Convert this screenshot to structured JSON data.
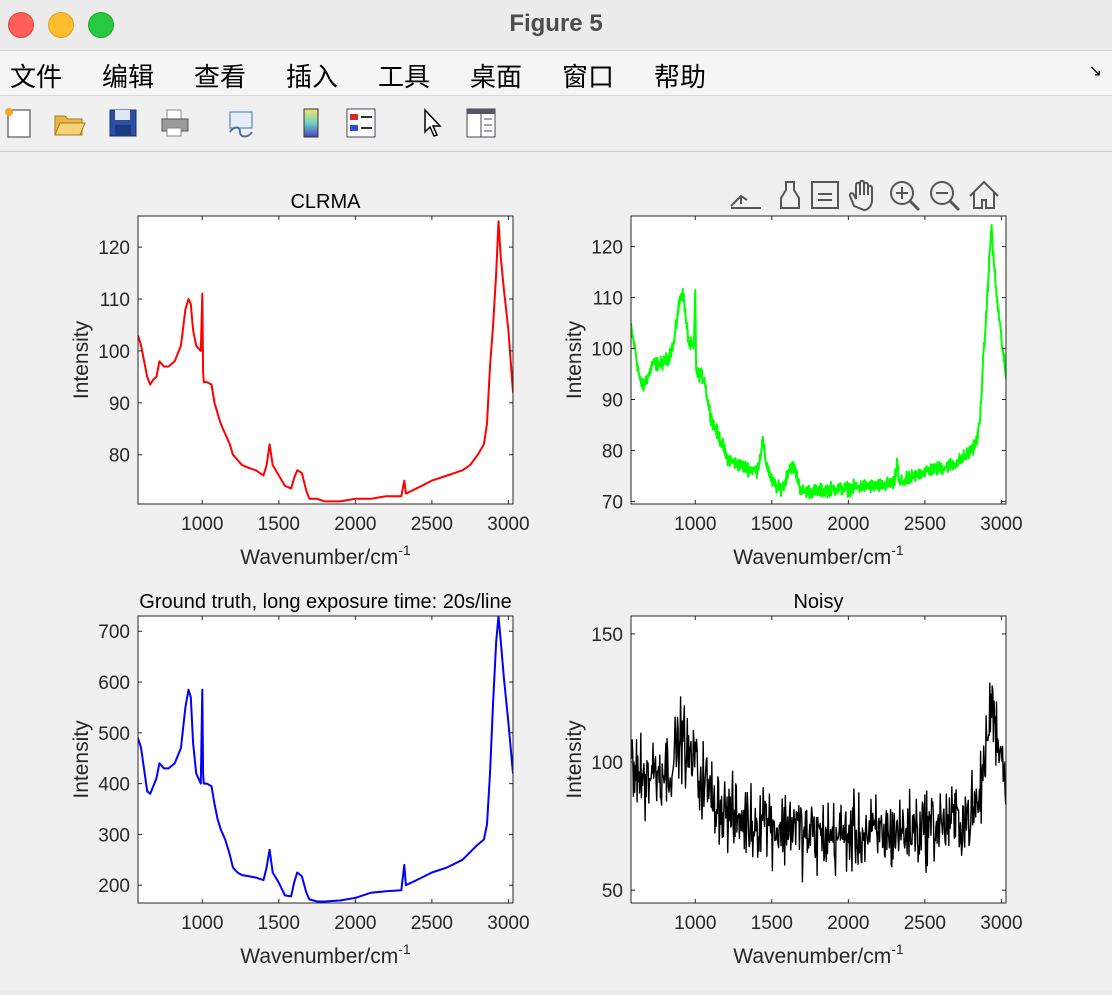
{
  "window": {
    "title": "Figure 5"
  },
  "menu": [
    "文件",
    "编辑",
    "查看",
    "插入",
    "工具",
    "桌面",
    "窗口",
    "帮助"
  ],
  "menu_overflow_icon": "arrow-expand-icon",
  "toolbar_icons": [
    "new-file-icon",
    "open-folder-icon",
    "save-icon",
    "print-icon",
    "link-plot-icon",
    "colorbar-icon",
    "legend-icon",
    "pointer-icon",
    "property-inspector-icon"
  ],
  "axes_toolbar_icons": [
    "export-icon",
    "brush-icon",
    "data-tips-icon",
    "pan-icon",
    "zoom-in-icon",
    "zoom-out-icon",
    "home-icon"
  ],
  "chart_data": [
    {
      "type": "line",
      "title": "CLRMA",
      "xlabel": "Wavenumber/cm",
      "xlabel_sup": "-1",
      "ylabel": "Intensity",
      "xlim": [
        580,
        3030
      ],
      "ylim": [
        70.5,
        126
      ],
      "xticks": [
        1000,
        1500,
        2000,
        2500,
        3000
      ],
      "yticks": [
        80,
        90,
        100,
        110,
        120
      ],
      "color": "#ff0000",
      "noise": 0,
      "x": [
        580,
        600,
        640,
        660,
        680,
        700,
        720,
        750,
        780,
        820,
        860,
        890,
        910,
        925,
        940,
        960,
        990,
        1000,
        1005,
        1010,
        1030,
        1060,
        1080,
        1100,
        1120,
        1150,
        1180,
        1200,
        1230,
        1260,
        1300,
        1350,
        1400,
        1420,
        1440,
        1460,
        1500,
        1540,
        1580,
        1600,
        1620,
        1650,
        1680,
        1700,
        1750,
        1800,
        1900,
        2000,
        2100,
        2200,
        2300,
        2320,
        2330,
        2400,
        2500,
        2600,
        2700,
        2750,
        2800,
        2840,
        2860,
        2880,
        2900,
        2920,
        2935,
        2950,
        2970,
        3000,
        3030
      ],
      "y": [
        103,
        101,
        95,
        93.5,
        94.5,
        95,
        98,
        97,
        97,
        98,
        101,
        108,
        110,
        109,
        104,
        101,
        100,
        111,
        96,
        94,
        94,
        93.5,
        90,
        88,
        86,
        84,
        82,
        80,
        79,
        78,
        77.5,
        77,
        76,
        78,
        82,
        78,
        76,
        74,
        73.5,
        75.5,
        77,
        76.5,
        73,
        71.5,
        71.5,
        71,
        71,
        71.5,
        71.5,
        72,
        72,
        75,
        72.5,
        73.5,
        75,
        76,
        77,
        78,
        80,
        82,
        86,
        97,
        105,
        115,
        125,
        118,
        112,
        104,
        92
      ]
    },
    {
      "type": "line",
      "title": "",
      "xlabel": "Wavenumber/cm",
      "xlabel_sup": "-1",
      "ylabel": "Intensity",
      "xlim": [
        580,
        3030
      ],
      "ylim": [
        69.5,
        126
      ],
      "xticks": [
        1000,
        1500,
        2000,
        2500,
        3000
      ],
      "yticks": [
        70,
        80,
        90,
        100,
        110,
        120
      ],
      "color": "#00ff00",
      "noise": 1.3,
      "x": [
        580,
        600,
        640,
        660,
        680,
        700,
        720,
        750,
        780,
        820,
        860,
        890,
        910,
        925,
        940,
        960,
        990,
        1000,
        1005,
        1010,
        1030,
        1060,
        1080,
        1100,
        1120,
        1150,
        1180,
        1200,
        1230,
        1260,
        1300,
        1350,
        1400,
        1420,
        1440,
        1460,
        1500,
        1540,
        1580,
        1600,
        1620,
        1650,
        1680,
        1700,
        1750,
        1800,
        1900,
        2000,
        2100,
        2200,
        2300,
        2320,
        2330,
        2400,
        2500,
        2600,
        2700,
        2750,
        2800,
        2840,
        2860,
        2880,
        2900,
        2920,
        2935,
        2950,
        2970,
        3000,
        3030
      ],
      "y": [
        104,
        101,
        93.5,
        92.5,
        94,
        95,
        97,
        97,
        97,
        98,
        101,
        108,
        111,
        110,
        105,
        101,
        100,
        112,
        96.5,
        95,
        95,
        94,
        90,
        87,
        85,
        83,
        81,
        79,
        78,
        77.5,
        77,
        76.5,
        76,
        78,
        82,
        78,
        74,
        72.5,
        73,
        75.5,
        77,
        76.5,
        73,
        72,
        72,
        72,
        72.5,
        72.5,
        73,
        73,
        73.5,
        78,
        73.5,
        74.5,
        76,
        76.5,
        77.5,
        78.5,
        80,
        82,
        86,
        97,
        106,
        117,
        124,
        117,
        110,
        102,
        94
      ]
    },
    {
      "type": "line",
      "title": "Ground truth, long exposure time: 20s/line",
      "xlabel": "Wavenumber/cm",
      "xlabel_sup": "-1",
      "ylabel": "Intensity",
      "xlim": [
        580,
        3030
      ],
      "ylim": [
        165,
        730
      ],
      "xticks": [
        1000,
        1500,
        2000,
        2500,
        3000
      ],
      "yticks": [
        200,
        300,
        400,
        500,
        600,
        700
      ],
      "color": "#0000ff",
      "noise": 0,
      "x": [
        580,
        600,
        640,
        660,
        680,
        700,
        720,
        750,
        780,
        820,
        860,
        890,
        910,
        925,
        940,
        960,
        990,
        1000,
        1005,
        1010,
        1030,
        1060,
        1080,
        1100,
        1120,
        1150,
        1180,
        1200,
        1230,
        1260,
        1300,
        1350,
        1400,
        1420,
        1440,
        1460,
        1500,
        1540,
        1580,
        1600,
        1620,
        1650,
        1680,
        1700,
        1750,
        1800,
        1900,
        2000,
        2100,
        2200,
        2300,
        2320,
        2330,
        2400,
        2500,
        2600,
        2700,
        2750,
        2800,
        2840,
        2860,
        2880,
        2900,
        2920,
        2935,
        2950,
        2970,
        3000,
        3030
      ],
      "y": [
        490,
        470,
        385,
        380,
        395,
        410,
        440,
        430,
        430,
        440,
        470,
        550,
        585,
        570,
        480,
        420,
        400,
        585,
        420,
        400,
        400,
        395,
        360,
        330,
        310,
        290,
        260,
        235,
        225,
        220,
        218,
        215,
        210,
        235,
        270,
        225,
        205,
        180,
        178,
        205,
        225,
        218,
        185,
        172,
        168,
        168,
        170,
        175,
        185,
        188,
        190,
        240,
        200,
        210,
        225,
        235,
        250,
        265,
        280,
        290,
        320,
        420,
        560,
        680,
        730,
        680,
        610,
        520,
        420
      ]
    },
    {
      "type": "line",
      "title": "Noisy",
      "xlabel": "Wavenumber/cm",
      "xlabel_sup": "-1",
      "ylabel": "Intensity",
      "xlim": [
        580,
        3030
      ],
      "ylim": [
        45,
        157
      ],
      "xticks": [
        1000,
        1500,
        2000,
        2500,
        3000
      ],
      "yticks": [
        50,
        100,
        150
      ],
      "color": "#000000",
      "noise": 12,
      "x": [
        580,
        600,
        640,
        660,
        680,
        700,
        720,
        750,
        780,
        820,
        860,
        890,
        910,
        925,
        940,
        960,
        990,
        1000,
        1005,
        1010,
        1030,
        1060,
        1080,
        1100,
        1120,
        1150,
        1180,
        1200,
        1230,
        1260,
        1300,
        1350,
        1400,
        1420,
        1440,
        1460,
        1500,
        1540,
        1580,
        1600,
        1620,
        1650,
        1680,
        1700,
        1750,
        1800,
        1900,
        2000,
        2100,
        2200,
        2300,
        2320,
        2330,
        2400,
        2500,
        2600,
        2700,
        2750,
        2800,
        2840,
        2860,
        2880,
        2900,
        2920,
        2935,
        2950,
        2970,
        3000,
        3030
      ],
      "y": [
        104,
        101,
        94,
        93,
        94.5,
        95,
        97,
        97,
        97,
        98,
        101,
        108,
        110,
        109,
        104,
        101,
        100,
        111,
        96,
        94,
        94,
        93.5,
        90,
        88,
        86,
        84,
        82,
        80,
        79,
        78,
        77.5,
        77,
        76,
        78,
        82,
        78,
        76,
        74,
        73.5,
        75.5,
        77,
        76.5,
        73,
        71.5,
        71.5,
        71,
        71,
        71.5,
        71.5,
        72,
        72,
        75,
        72.5,
        73.5,
        75,
        76,
        77,
        78,
        80,
        82,
        86,
        97,
        105,
        115,
        125,
        118,
        112,
        104,
        92
      ]
    }
  ]
}
